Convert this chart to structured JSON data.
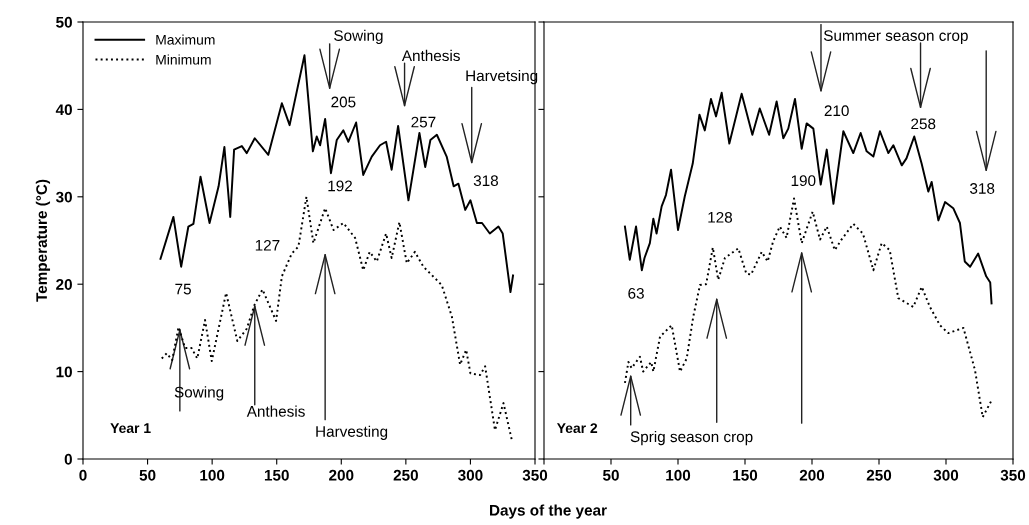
{
  "chart_data": [
    {
      "type": "line",
      "ylabel": "Temperature (°C)",
      "xlabel": "Days of the year",
      "xlim": [
        0,
        350
      ],
      "ylim": [
        0,
        50
      ],
      "xticks": [
        0,
        50,
        100,
        150,
        200,
        250,
        300,
        350
      ],
      "yticks": [
        0,
        10,
        20,
        30,
        40,
        50
      ],
      "legend": "top left",
      "marker": "none",
      "grid": false,
      "series": [
        {
          "name": "Maximum",
          "color": "#000000",
          "line_style": "solid",
          "x": [
            60,
            70,
            76,
            81.6,
            85.5,
            91,
            98,
            105,
            109.5,
            114,
            117,
            123,
            126.8,
            133,
            143.5,
            154,
            160,
            171.5,
            178,
            181,
            183.6,
            187.5,
            192,
            196.5,
            201.6,
            205.5,
            211.5,
            217,
            223.6,
            230,
            234.7,
            239,
            244,
            252,
            260.5,
            265,
            269,
            274,
            281.6,
            287,
            290.7,
            296,
            300,
            305,
            309,
            315,
            321.7,
            325,
            331,
            333
          ],
          "values": [
            22.9,
            27.7,
            22.0,
            26.6,
            26.9,
            32.3,
            27.0,
            31.2,
            35.7,
            27.7,
            35.4,
            35.8,
            35.0,
            36.7,
            34.8,
            40.7,
            38.2,
            46.2,
            35.2,
            36.9,
            35.9,
            38.9,
            32.7,
            36.5,
            37.6,
            36.3,
            38.5,
            32.5,
            34.6,
            35.9,
            36.3,
            33.1,
            38.1,
            29.6,
            37.3,
            33.4,
            36.5,
            37.1,
            34.6,
            31.2,
            31.5,
            28.5,
            29.6,
            27.0,
            27.0,
            25.8,
            26.6,
            25.8,
            19.1,
            21.0
          ]
        },
        {
          "name": "Minimum",
          "color": "#000000",
          "line_style": "dotted",
          "x": [
            61,
            64.8,
            69,
            74,
            79,
            84,
            88.5,
            94.5,
            99.7,
            110.8,
            119.5,
            126.8,
            132.7,
            139,
            149.5,
            154,
            161.6,
            166.8,
            173,
            178.4,
            187.5,
            194,
            201.6,
            210.7,
            217,
            222,
            227.5,
            234.7,
            239,
            245,
            250.7,
            257,
            263.6,
            277.8,
            285.6,
            292,
            296.7,
            300,
            307.5,
            311.4,
            319,
            325.6,
            332
          ],
          "values": [
            11.5,
            12.1,
            11.3,
            15.1,
            12.7,
            12.7,
            11.5,
            15.9,
            11.2,
            19.0,
            13.5,
            14.9,
            17.6,
            19.4,
            15.8,
            20.9,
            23.5,
            24.3,
            30.0,
            24.7,
            28.7,
            26.2,
            27.0,
            25.3,
            21.6,
            23.7,
            22.6,
            25.8,
            23.0,
            27.1,
            22.4,
            23.7,
            22.0,
            19.9,
            16.3,
            10.8,
            12.5,
            9.8,
            9.6,
            10.6,
            3.3,
            6.4,
            2.2
          ]
        }
      ],
      "annotations": [
        "Year 1",
        {
          "text": "Sowing",
          "x": 75,
          "y": 15.1
        },
        {
          "text": "Anthesis",
          "x": 133,
          "y": 17.8
        },
        "Harvesting",
        "Sowing",
        "Anthesis",
        "Harvetsing",
        "75",
        "127",
        "192",
        "205",
        "257",
        "318"
      ]
    },
    {
      "type": "line",
      "xlim": [
        0,
        350
      ],
      "ylim": [
        0,
        50
      ],
      "xticks": [
        {
          "value": 0,
          "label": null
        },
        50,
        100,
        150,
        200,
        250,
        300,
        350
      ],
      "yticks": [
        {
          "value": 0,
          "label": null
        },
        {
          "value": 10,
          "label": null
        },
        {
          "value": 20,
          "label": null
        },
        {
          "value": 30,
          "label": null
        },
        {
          "value": 40,
          "label": null
        },
        {
          "value": 50,
          "label": null
        }
      ],
      "tick_labels": "x",
      "marker": "none",
      "grid": false,
      "series": [
        {
          "color": "#000000",
          "line_style": "solid",
          "x": [
            60.4,
            64,
            68.7,
            73,
            75,
            79,
            81.6,
            84,
            87.8,
            91,
            94.8,
            100,
            105,
            111,
            116,
            120,
            124.6,
            128.4,
            132.6,
            138.3,
            147.5,
            155.5,
            161,
            168,
            173.6,
            178.6,
            182.3,
            187.3,
            192.3,
            196,
            201,
            206.5,
            211,
            216,
            223.4,
            230.8,
            236.3,
            240.8,
            245.8,
            250.7,
            257,
            260.7,
            267,
            270.5,
            276.3,
            281.8,
            286.8,
            289.3,
            294.3,
            299.3,
            305.4,
            310.4,
            314,
            318,
            324,
            330,
            333,
            334
          ],
          "values": [
            26.6,
            22.8,
            26.6,
            21.6,
            23.0,
            24.7,
            27.5,
            25.8,
            28.9,
            30.2,
            33.1,
            26.2,
            30.0,
            33.8,
            39.4,
            37.6,
            41.2,
            39.2,
            41.9,
            36.1,
            41.8,
            37.1,
            40.1,
            37.1,
            40.9,
            36.7,
            37.8,
            41.2,
            35.5,
            38.4,
            37.8,
            31.4,
            35.4,
            29.2,
            37.5,
            35.0,
            37.3,
            35.2,
            34.6,
            37.5,
            35.0,
            35.9,
            33.6,
            34.4,
            36.9,
            33.8,
            30.6,
            31.7,
            27.3,
            29.4,
            28.7,
            27.0,
            22.6,
            22.0,
            23.5,
            20.9,
            20.2,
            17.8
          ]
        },
        {
          "color": "#000000",
          "line_style": "dotted",
          "x": [
            60.4,
            63,
            65.4,
            71.6,
            74,
            80,
            81.6,
            86.6,
            95.3,
            101.5,
            106.5,
            111.4,
            116.4,
            121,
            126,
            130,
            135,
            145,
            151,
            154.5,
            162.5,
            166.9,
            171,
            176,
            181,
            186.6,
            192.3,
            200.5,
            206,
            211,
            217,
            222,
            230.8,
            238,
            245.8,
            252,
            258,
            264.4,
            275.6,
            281.9,
            288,
            295.5,
            301.7,
            313,
            321.6,
            327.4,
            334
          ],
          "values": [
            8.7,
            11.1,
            10.4,
            11.7,
            10.0,
            11.1,
            10.0,
            14.0,
            15.3,
            10.0,
            11.5,
            16.3,
            19.9,
            20.0,
            24.2,
            20.5,
            23.0,
            24.1,
            21.2,
            21.1,
            23.7,
            22.6,
            24.9,
            26.6,
            25.3,
            29.8,
            24.7,
            28.3,
            25.1,
            26.6,
            23.9,
            25.1,
            26.9,
            25.8,
            21.6,
            24.7,
            23.9,
            18.4,
            17.4,
            19.7,
            17.4,
            15.3,
            14.4,
            15.0,
            10.2,
            4.8,
            6.7
          ]
        }
      ],
      "annotations": [
        "Year 2",
        {
          "text": "Sprig season crop",
          "x": 64.7,
          "y": 9.8
        },
        "Summer season crop",
        "63",
        "128",
        "190",
        "210",
        "258",
        "318"
      ]
    }
  ]
}
